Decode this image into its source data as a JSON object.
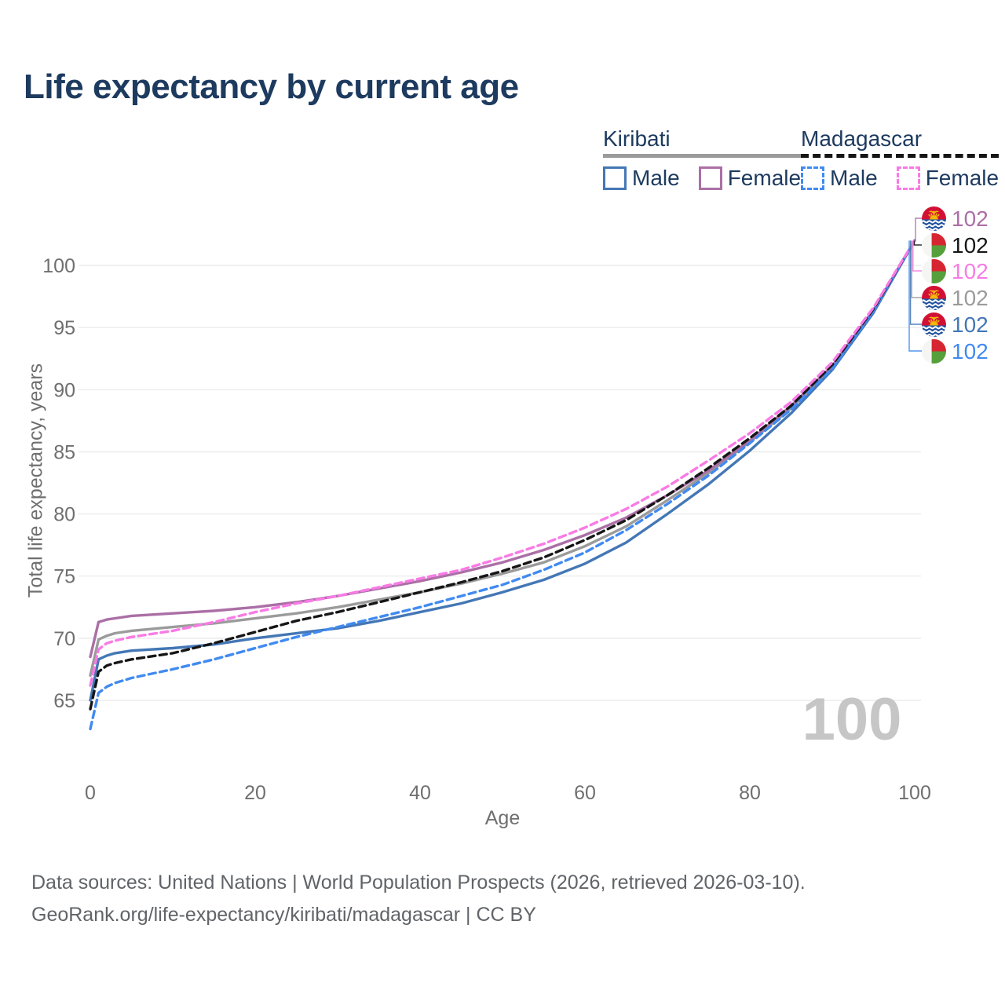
{
  "title": "Life expectancy by current age",
  "legend": {
    "groups": [
      {
        "name": "Kiribati",
        "line_style": "solid",
        "line_color": "#9b9b9b",
        "items": [
          {
            "label": "Male",
            "color": "#4477b5",
            "dashed": false
          },
          {
            "label": "Female",
            "color": "#ab6fa6",
            "dashed": false
          }
        ]
      },
      {
        "name": "Madagascar",
        "line_style": "dashed",
        "line_color": "#161616",
        "items": [
          {
            "label": "Male",
            "color": "#418af0",
            "dashed": true
          },
          {
            "label": "Female",
            "color": "#f87be5",
            "dashed": true
          }
        ]
      }
    ]
  },
  "chart_data": {
    "type": "line",
    "title": "Life expectancy by current age",
    "xlabel": "Age",
    "ylabel": "Total life expectancy, years",
    "xlim": [
      0,
      100
    ],
    "ylim": [
      61,
      103
    ],
    "xticks": [
      0,
      20,
      40,
      60,
      80,
      100
    ],
    "yticks": [
      65,
      70,
      75,
      80,
      85,
      90,
      95,
      100
    ],
    "grid": "horizontal-only",
    "legend_position": "top-right",
    "watermark": "100",
    "ages": [
      0,
      1,
      2,
      3,
      5,
      10,
      15,
      20,
      25,
      30,
      35,
      40,
      45,
      50,
      55,
      60,
      65,
      70,
      75,
      80,
      85,
      90,
      95,
      100
    ],
    "series": [
      {
        "name": "Kiribati Female",
        "country": "Kiribati",
        "sex": "Female",
        "color": "#ab6fa6",
        "dashed": false,
        "flag": "kiribati",
        "end_label": "102",
        "values": [
          68.5,
          71.3,
          71.5,
          71.6,
          71.8,
          72.0,
          72.2,
          72.5,
          72.9,
          73.4,
          74.0,
          74.6,
          75.3,
          76.1,
          77.1,
          78.3,
          79.7,
          81.5,
          83.5,
          85.9,
          88.7,
          91.9,
          96.4,
          102
        ]
      },
      {
        "name": "Madagascar (both sexes)",
        "country": "Madagascar",
        "sex": "Both",
        "color": "#161616",
        "dashed": true,
        "flag": "madagascar",
        "end_label": "102",
        "values": [
          64.3,
          67.3,
          67.8,
          68.0,
          68.3,
          68.8,
          69.6,
          70.5,
          71.4,
          72.1,
          72.9,
          73.7,
          74.5,
          75.4,
          76.5,
          77.9,
          79.5,
          81.5,
          83.7,
          86.1,
          88.7,
          92.0,
          96.5,
          102
        ]
      },
      {
        "name": "Madagascar Female",
        "country": "Madagascar",
        "sex": "Female",
        "color": "#f87be5",
        "dashed": true,
        "flag": "madagascar",
        "end_label": "102",
        "values": [
          66.2,
          69.1,
          69.6,
          69.8,
          70.1,
          70.6,
          71.3,
          72.1,
          72.8,
          73.4,
          74.1,
          74.8,
          75.5,
          76.5,
          77.6,
          78.9,
          80.4,
          82.2,
          84.3,
          86.5,
          89.0,
          92.2,
          96.6,
          102
        ]
      },
      {
        "name": "Kiribati (both sexes)",
        "country": "Kiribati",
        "sex": "Both",
        "color": "#9b9b9b",
        "dashed": false,
        "flag": "kiribati",
        "end_label": "102",
        "values": [
          67.0,
          69.9,
          70.2,
          70.4,
          70.6,
          70.9,
          71.2,
          71.6,
          72.0,
          72.5,
          73.1,
          73.7,
          74.4,
          75.2,
          76.1,
          77.4,
          79.0,
          81.1,
          83.3,
          85.8,
          88.5,
          91.8,
          96.3,
          102
        ]
      },
      {
        "name": "Kiribati Male",
        "country": "Kiribati",
        "sex": "Male",
        "color": "#4477b5",
        "dashed": false,
        "flag": "kiribati",
        "end_label": "102",
        "values": [
          65.0,
          68.3,
          68.6,
          68.8,
          69.0,
          69.2,
          69.5,
          70.0,
          70.4,
          70.8,
          71.4,
          72.1,
          72.8,
          73.7,
          74.7,
          76.0,
          77.7,
          80.0,
          82.4,
          85.1,
          88.1,
          91.6,
          96.2,
          102
        ]
      },
      {
        "name": "Madagascar Male",
        "country": "Madagascar",
        "sex": "Male",
        "color": "#418af0",
        "dashed": true,
        "flag": "madagascar",
        "end_label": "102",
        "values": [
          62.7,
          65.6,
          66.1,
          66.4,
          66.8,
          67.5,
          68.3,
          69.2,
          70.1,
          70.9,
          71.7,
          72.5,
          73.4,
          74.3,
          75.5,
          76.9,
          78.7,
          80.8,
          83.1,
          85.7,
          88.4,
          91.7,
          96.3,
          102
        ]
      }
    ]
  },
  "colors": {
    "title_text": "#1d3a5f",
    "axis_text": "#6f6f6f",
    "gridline": "#ececec",
    "watermark": "#c6c6c6",
    "footer_text": "#606468",
    "flag_kiribati_red": "#d21034",
    "flag_kiribati_gold": "#f3b80c",
    "flag_kiribati_blue": "#1e50a0",
    "flag_madagascar_red": "#d62631",
    "flag_madagascar_green": "#55a03a",
    "flag_madagascar_white": "#f5f5f3"
  },
  "footer": {
    "line1": "Data sources: United Nations | World Population Prospects (2026, retrieved 2026-03-10).",
    "line2": "GeoRank.org/life-expectancy/kiribati/madagascar | CC BY"
  }
}
